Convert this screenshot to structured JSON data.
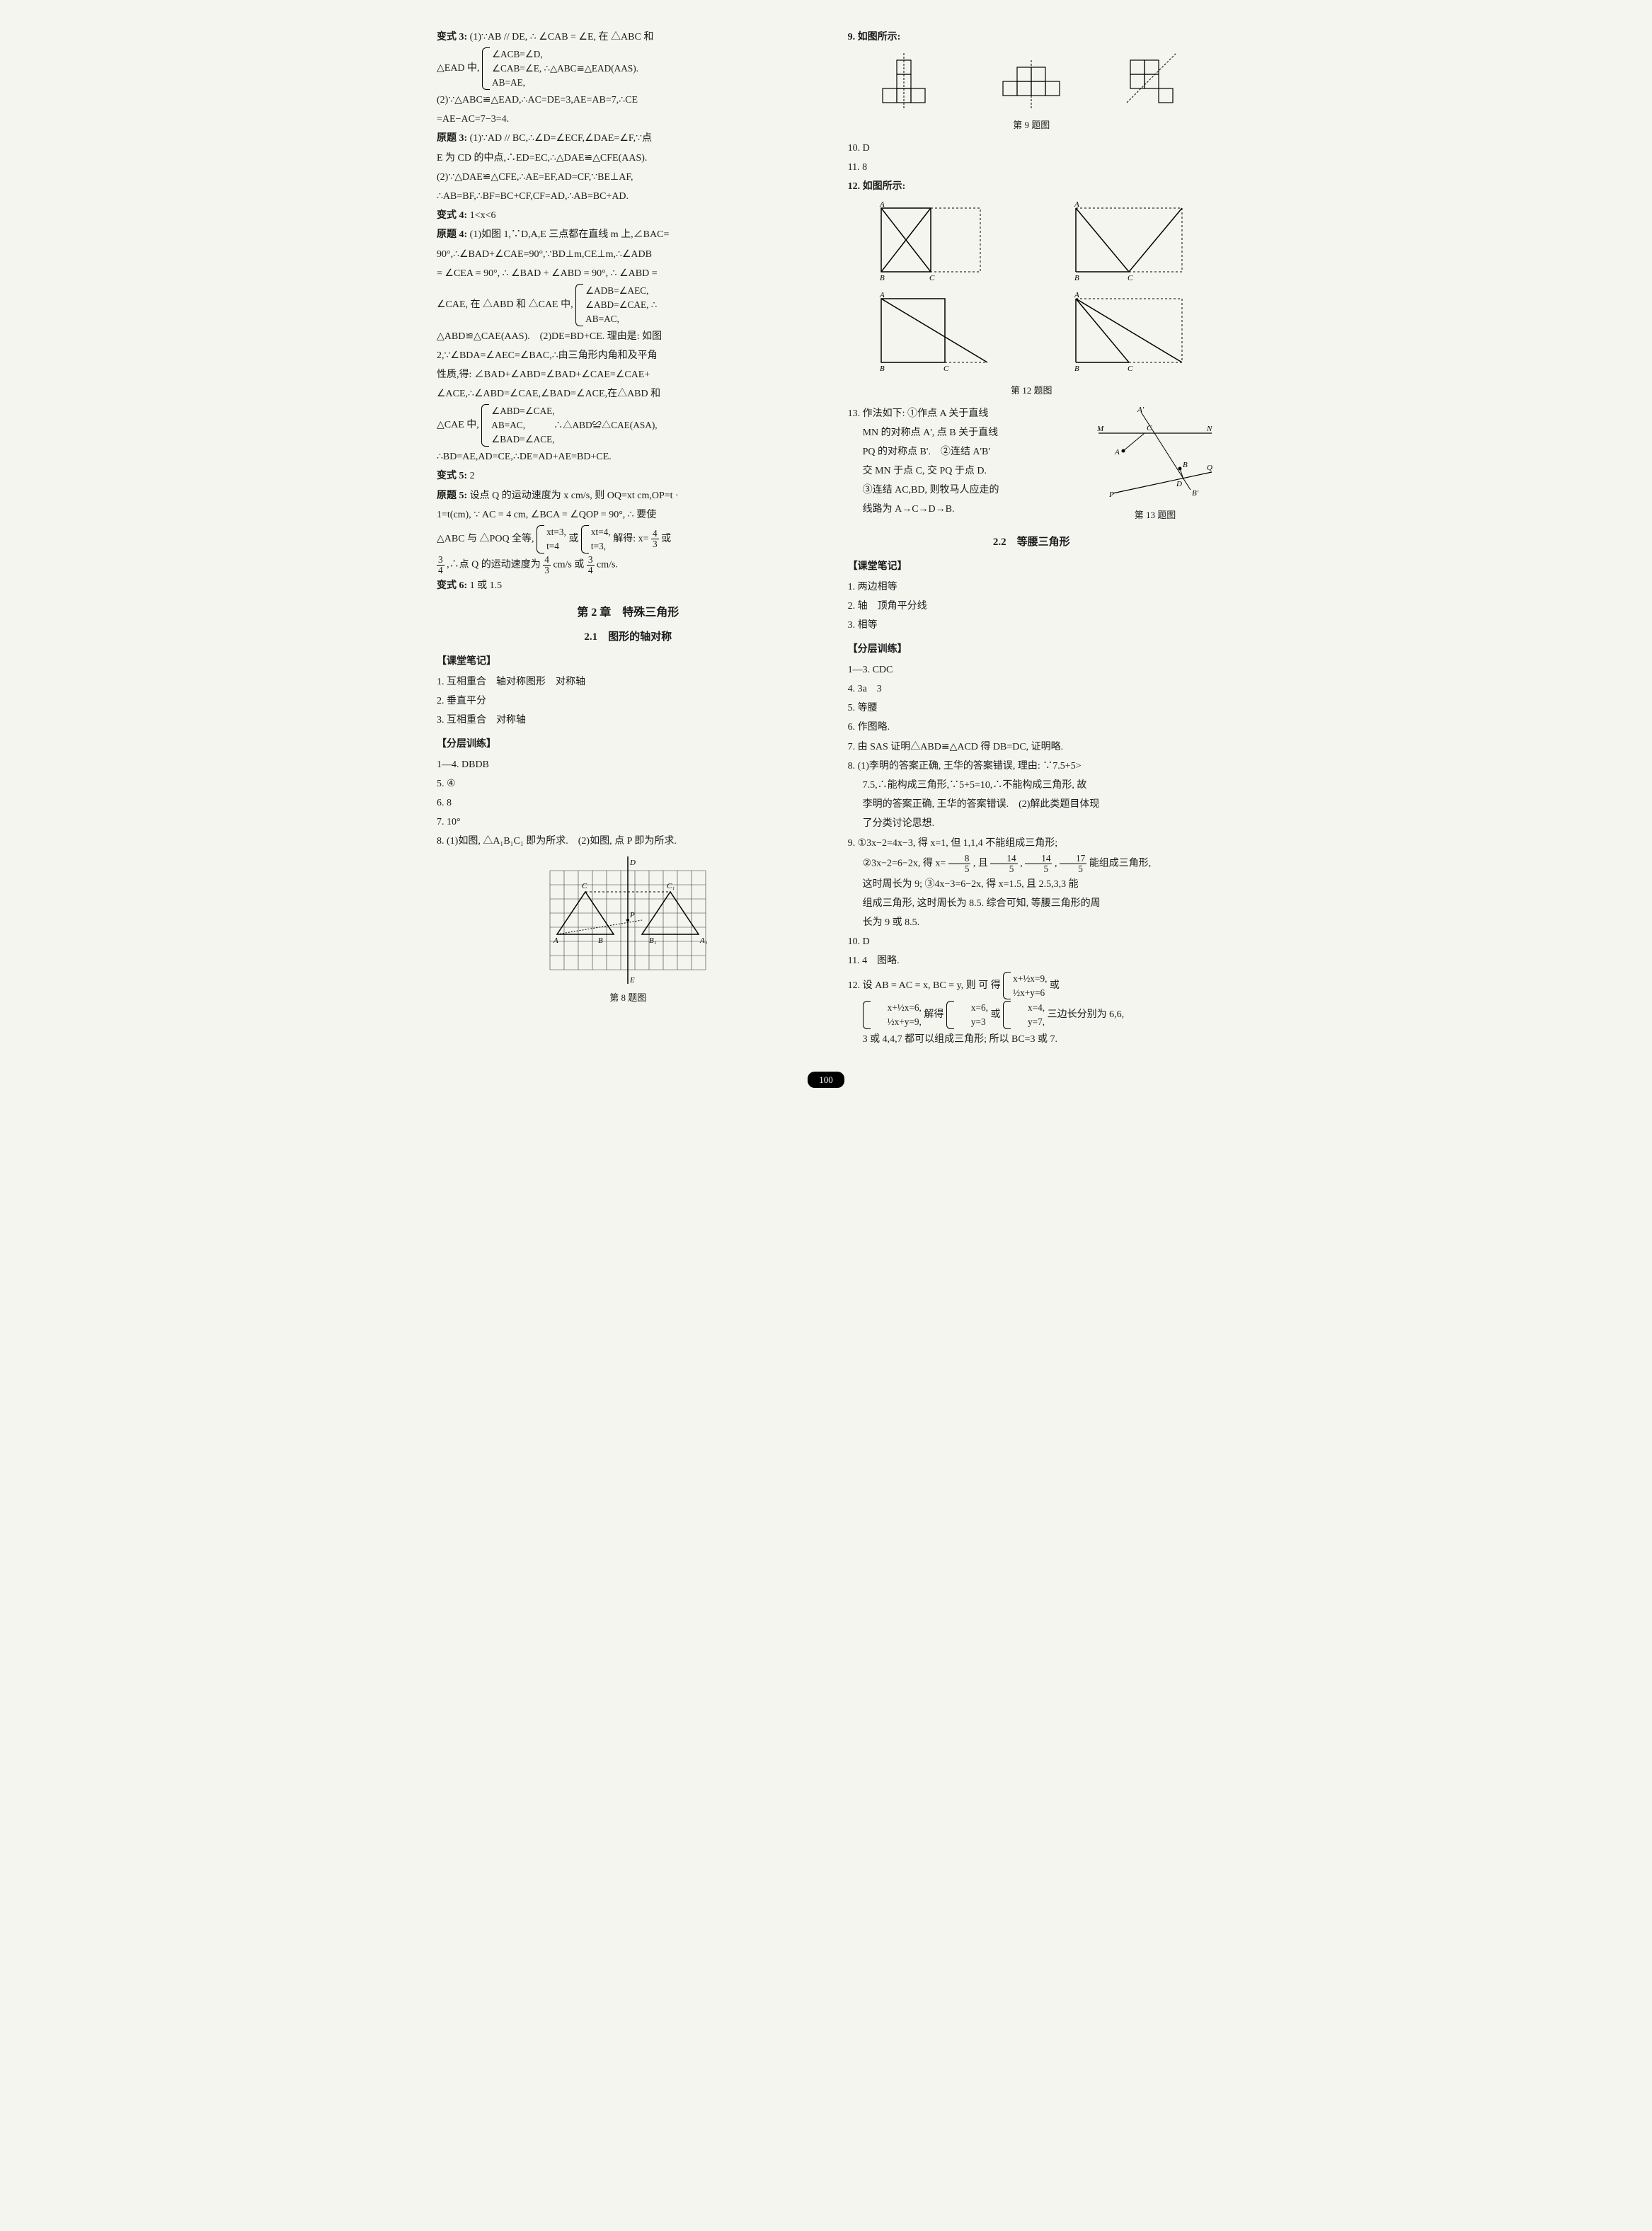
{
  "page_number": "100",
  "left": {
    "bs3_1a": "变式 3:",
    "bs3_1b": "(1)∵AB // DE, ∴ ∠CAB = ∠E, 在 △ABC 和",
    "bs3_2a": "△EAD 中,",
    "bs3_brace1_l1": "∠ACB=∠D,",
    "bs3_brace1_l2": "∠CAB=∠E, ∴△ABC≌△EAD(AAS).",
    "bs3_brace1_l3": "AB=AE,",
    "bs3_3": "(2)∵△ABC≌△EAD,∴AC=DE=3,AE=AB=7,∴CE",
    "bs3_4": "=AE−AC=7−3=4.",
    "yt3_1a": "原题 3:",
    "yt3_1b": "(1)∵AD // BC,∴∠D=∠ECF,∠DAE=∠F,∵点",
    "yt3_2": "E 为 CD 的中点,∴ED=EC,∴△DAE≌△CFE(AAS).",
    "yt3_3": "(2)∵△DAE≌△CFE,∴AE=EF,AD=CF,∵BE⊥AF,",
    "yt3_4": "∴AB=BF,∴BF=BC+CF,CF=AD,∴AB=BC+AD.",
    "bs4_a": "变式 4:",
    "bs4_b": "1<x<6",
    "yt4_1a": "原题 4:",
    "yt4_1b": "(1)如图 1,∵D,A,E 三点都在直线 m 上,∠BAC=",
    "yt4_2": "90°,∴∠BAD+∠CAE=90°,∵BD⊥m,CE⊥m,∴∠ADB",
    "yt4_3": "= ∠CEA = 90°, ∴ ∠BAD + ∠ABD = 90°, ∴ ∠ABD =",
    "yt4_4a": "∠CAE, 在 △ABD 和 △CAE 中,",
    "yt4_brace1_l1": "∠ADB=∠AEC,",
    "yt4_brace1_l2": "∠ABD=∠CAE, ∴",
    "yt4_brace1_l3": "AB=AC,",
    "yt4_5": "△ABD≌△CAE(AAS).　(2)DE=BD+CE. 理由是: 如图",
    "yt4_6": "2,∵∠BDA=∠AEC=∠BAC,∴由三角形内角和及平角",
    "yt4_7": "性质,得: ∠BAD+∠ABD=∠BAD+∠CAE=∠CAE+",
    "yt4_8": "∠ACE,∴∠ABD=∠CAE,∠BAD=∠ACE,在△ABD 和",
    "yt4_9a": "△CAE 中,",
    "yt4_brace2_l1": "∠ABD=∠CAE,",
    "yt4_brace2_l2": "AB=AC,　　　∴△ABD≌△CAE(ASA),",
    "yt4_brace2_l3": "∠BAD=∠ACE,",
    "yt4_10": "∴BD=AE,AD=CE,∴DE=AD+AE=BD+CE.",
    "bs5_a": "变式 5:",
    "bs5_b": "2",
    "yt5_1a": "原题 5:",
    "yt5_1b": "设点 Q 的运动速度为 x cm/s, 则 OQ=xt cm,OP=t ·",
    "yt5_2": "1=t(cm), ∵ AC = 4 cm, ∠BCA = ∠QOP = 90°, ∴ 要使",
    "yt5_3a": "△ABC 与 △POQ 全等,",
    "yt5_brace1_l1": "xt=3,",
    "yt5_brace1_l2": "t=4",
    "yt5_mid": "或",
    "yt5_brace2_l1": "xt=4,",
    "yt5_brace2_l2": "t=3,",
    "yt5_3b": "解得: x=",
    "yt5_frac1_n": "4",
    "yt5_frac1_d": "3",
    "yt5_3c": "或",
    "yt5_frac2_n": "3",
    "yt5_frac2_d": "4",
    "yt5_4a": ",∴点 Q 的运动速度为",
    "yt5_frac3_n": "4",
    "yt5_frac3_d": "3",
    "yt5_4b": "cm/s 或",
    "yt5_frac4_n": "3",
    "yt5_frac4_d": "4",
    "yt5_4c": "cm/s.",
    "bs6_a": "变式 6:",
    "bs6_b": "1 或 1.5",
    "chapter2": "第 2 章　特殊三角形",
    "sec21": "2.1　图形的轴对称",
    "ktbj": "【课堂笔记】",
    "kt1": "1. 互相重合　轴对称图形　对称轴",
    "kt2": "2. 垂直平分",
    "kt3": "3. 互相重合　对称轴",
    "fcxl": "【分层训练】",
    "fc1": "1—4. DBDB",
    "fc5": "5. ④",
    "fc6": "6. 8",
    "fc7": "7. 10°",
    "fc8": "8. (1)如图, △A₁B₁C₁ 即为所求.　(2)如图, 点 P 即为所求.",
    "fig8_caption": "第 8 题图",
    "fig8": {
      "grid_cols": 11,
      "grid_rows": 7,
      "cell": 20,
      "grid_color": "#333",
      "labels": {
        "A": "A",
        "B": "B",
        "C": "C",
        "A1": "A₁",
        "B1": "B₁",
        "C1": "C₁",
        "D": "D",
        "E": "E",
        "P": "P"
      }
    }
  },
  "right": {
    "q9": "9. 如图所示:",
    "fig9_caption": "第 9 题图",
    "q10": "10. D",
    "q11": "11. 8",
    "q12": "12. 如图所示:",
    "fig12_caption": "第 12 题图",
    "fig12_labels": {
      "A": "A",
      "B": "B",
      "C": "C"
    },
    "q13_1": "13. 作法如下: ①作点 A 关于直线",
    "q13_2": "MN 的对称点 A', 点 B 关于直线",
    "q13_3": "PQ 的对称点 B'.　②连结 A'B'",
    "q13_4": "交 MN 于点 C, 交 PQ 于点 D.",
    "q13_5": "③连结 AC,BD, 则牧马人应走的",
    "q13_6": "线路为 A→C→D→B.",
    "fig13_caption": "第 13 题图",
    "fig13_labels": {
      "A": "A",
      "Ap": "A'",
      "B": "B",
      "Bp": "B'",
      "C": "C",
      "D": "D",
      "M": "M",
      "N": "N",
      "P": "P",
      "Q": "Q"
    },
    "sec22": "2.2　等腰三角形",
    "ktbj2": "【课堂笔记】",
    "kt2_1": "1. 两边相等",
    "kt2_2": "2. 轴　顶角平分线",
    "kt2_3": "3. 相等",
    "fcxl2": "【分层训练】",
    "fc2_1": "1—3. CDC",
    "fc2_4": "4. 3a　3",
    "fc2_5": "5. 等腰",
    "fc2_6": "6. 作图略.",
    "fc2_7": "7. 由 SAS 证明△ABD≌△ACD 得 DB=DC, 证明略.",
    "fc2_8_1": "8. (1)李明的答案正确, 王华的答案错误, 理由: ∵7.5+5>",
    "fc2_8_2": "7.5,∴能构成三角形,∵5+5=10,∴不能构成三角形, 故",
    "fc2_8_3": "李明的答案正确, 王华的答案错误.　(2)解此类题目体现",
    "fc2_8_4": "了分类讨论思想.",
    "fc2_9_1": "9. ①3x−2=4x−3, 得 x=1, 但 1,1,4 不能组成三角形;",
    "fc2_9_2a": "②3x−2=6−2x, 得 x=",
    "fc2_9_f1n": "8",
    "fc2_9_f1d": "5",
    "fc2_9_2b": ", 且",
    "fc2_9_f2n": "14",
    "fc2_9_f2d": "5",
    "fc2_9_2c": ",",
    "fc2_9_f3n": "14",
    "fc2_9_f3d": "5",
    "fc2_9_2d": ",",
    "fc2_9_f4n": "17",
    "fc2_9_f4d": "5",
    "fc2_9_2e": "能组成三角形,",
    "fc2_9_3": "这时周长为 9; ③4x−3=6−2x, 得 x=1.5, 且 2.5,3,3 能",
    "fc2_9_4": "组成三角形, 这时周长为 8.5. 综合可知, 等腰三角形的周",
    "fc2_9_5": "长为 9 或 8.5.",
    "fc2_10": "10. D",
    "fc2_11": "11. 4　图略.",
    "fc2_12_1a": "12. 设 AB = AC = x, BC = y, 则 可 得",
    "fc2_12_b1_l1": "x+½x=9,",
    "fc2_12_b1_l2": "½x+y=6",
    "fc2_12_1b": "或",
    "fc2_12_b2_l1": "x+½x=6,",
    "fc2_12_b2_l2": "½x+y=9,",
    "fc2_12_2a": "解得",
    "fc2_12_b3_l1": "x=6,",
    "fc2_12_b3_l2": "y=3",
    "fc2_12_2b": "或",
    "fc2_12_b4_l1": "x=4,",
    "fc2_12_b4_l2": "y=7,",
    "fc2_12_2c": "三边长分别为 6,6,",
    "fc2_12_3": "3 或 4,4,7 都可以组成三角形; 所以 BC=3 或 7."
  },
  "colors": {
    "text": "#1a1a1a",
    "line": "#000000",
    "dash": "#333333",
    "bg": "#f5f5f0"
  }
}
